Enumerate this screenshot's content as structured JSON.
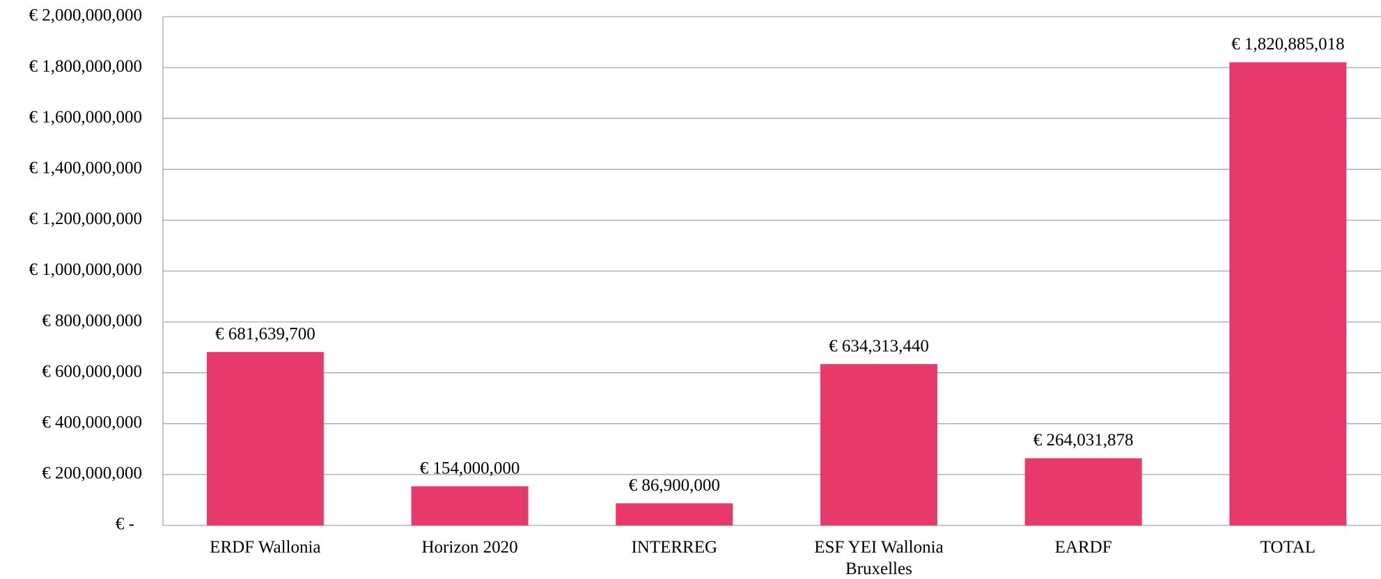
{
  "chart_data": {
    "type": "bar",
    "categories": [
      "ERDF Wallonia",
      "Horizon 2020",
      "INTERREG",
      "ESF YEI Wallonia Bruxelles",
      "EARDF",
      "TOTAL"
    ],
    "values": [
      681639700,
      154000000,
      86900000,
      634313440,
      264031878,
      1820885018
    ],
    "value_labels": [
      "€ 681,639,700",
      "€ 154,000,000",
      "€ 86,900,000",
      "€ 634,313,440",
      "€ 264,031,878",
      "€ 1,820,885,018"
    ],
    "color": "#e8396b",
    "ylim": [
      0,
      2000000000
    ],
    "yticks": [
      {
        "value": 0,
        "label": "€ -"
      },
      {
        "value": 200000000,
        "label": "€ 200,000,000"
      },
      {
        "value": 400000000,
        "label": "€ 400,000,000"
      },
      {
        "value": 600000000,
        "label": "€ 600,000,000"
      },
      {
        "value": 800000000,
        "label": "€ 800,000,000"
      },
      {
        "value": 1000000000,
        "label": "€ 1,000,000,000"
      },
      {
        "value": 1200000000,
        "label": "€ 1,200,000,000"
      },
      {
        "value": 1400000000,
        "label": "€ 1,400,000,000"
      },
      {
        "value": 1600000000,
        "label": "€ 1,600,000,000"
      },
      {
        "value": 1800000000,
        "label": "€ 1,800,000,000"
      },
      {
        "value": 2000000000,
        "label": "€ 2,000,000,000"
      }
    ],
    "grid": true
  }
}
